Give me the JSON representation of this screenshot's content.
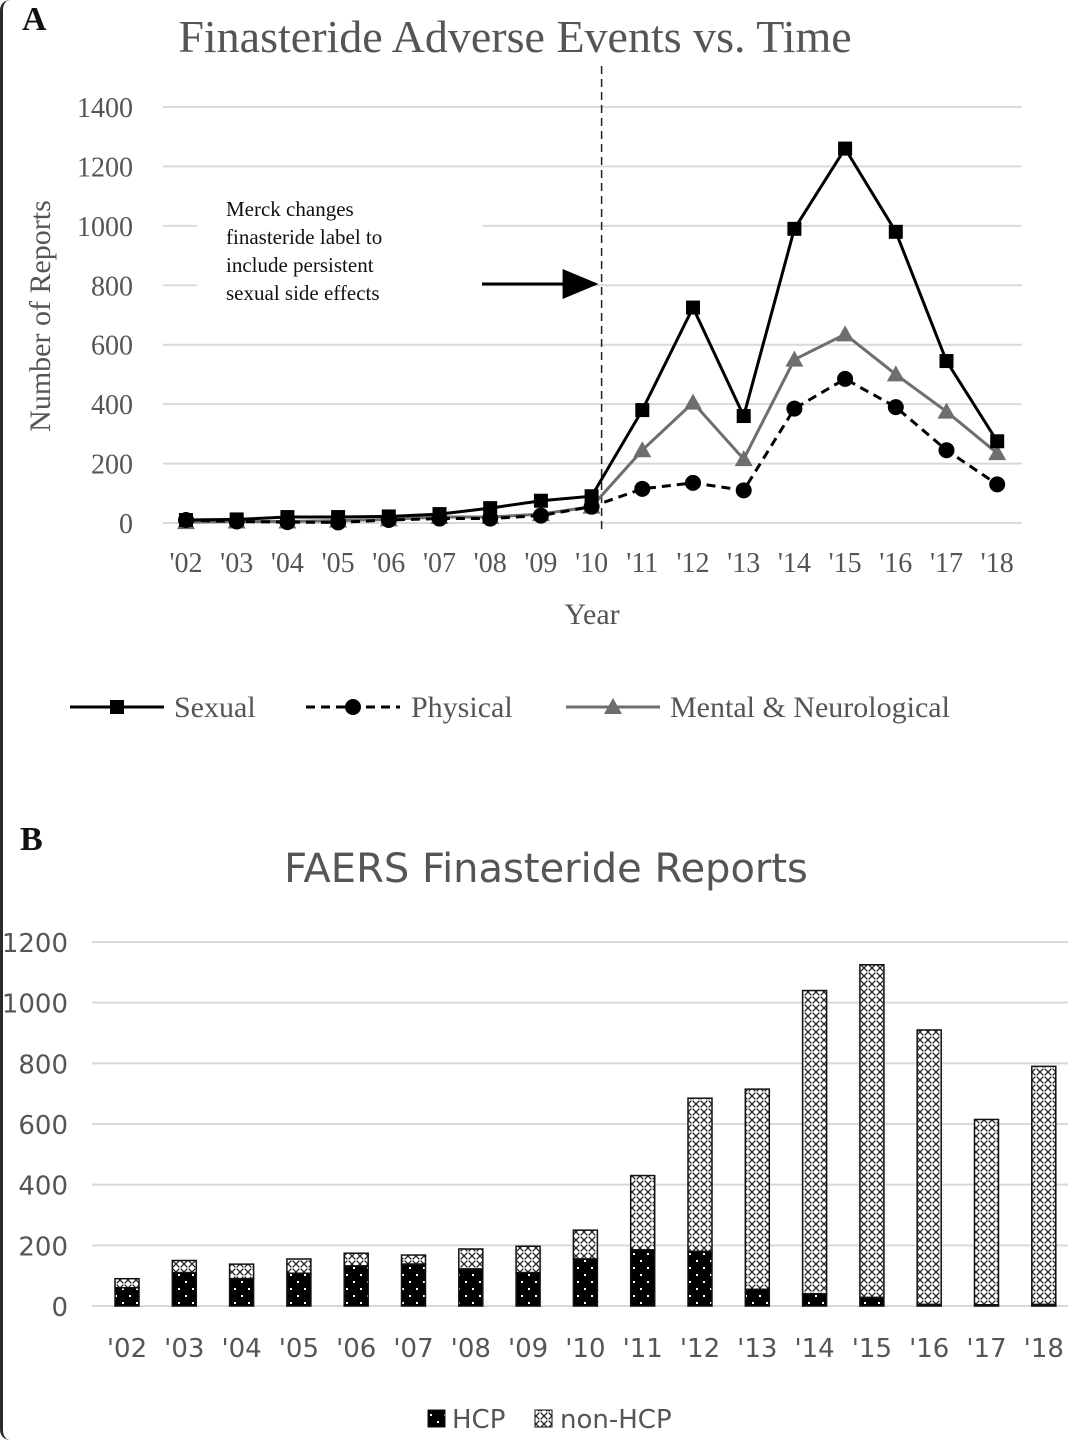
{
  "panels": {
    "a": {
      "letter": "A"
    },
    "b": {
      "letter": "B"
    }
  },
  "chart_data": [
    {
      "id": "A",
      "type": "line",
      "title": "Finasteride Adverse Events vs. Time",
      "xlabel": "Year",
      "ylabel": "Number of Reports",
      "categories": [
        "'02",
        "'03",
        "'04",
        "'05",
        "'06",
        "'07",
        "'08",
        "'09",
        "'10",
        "'11",
        "'12",
        "'13",
        "'14",
        "'15",
        "'16",
        "'17",
        "'18"
      ],
      "ylim": [
        0,
        1400
      ],
      "yticks": [
        0,
        200,
        400,
        600,
        800,
        1000,
        1200,
        1400
      ],
      "ytick_labels": [
        "0",
        "200",
        "400",
        "600",
        "800",
        "1000",
        "1200",
        "1400"
      ],
      "grid": true,
      "legend_position": "bottom",
      "series": [
        {
          "name": "Sexual",
          "marker": "square",
          "line": "solid",
          "color": "#000000",
          "values": [
            10,
            12,
            20,
            20,
            22,
            30,
            50,
            75,
            90,
            380,
            725,
            360,
            990,
            1260,
            980,
            545,
            275
          ]
        },
        {
          "name": "Physical",
          "marker": "circle",
          "line": "dashed",
          "color": "#000000",
          "values": [
            10,
            5,
            3,
            2,
            10,
            15,
            15,
            25,
            55,
            115,
            135,
            110,
            385,
            485,
            390,
            245,
            130
          ]
        },
        {
          "name": "Mental & Neurological",
          "marker": "triangle",
          "line": "solid",
          "color": "#6e6e6e",
          "values": [
            3,
            5,
            5,
            8,
            12,
            20,
            20,
            30,
            55,
            245,
            405,
            215,
            550,
            635,
            500,
            375,
            235
          ]
        }
      ],
      "annotation": {
        "lines": [
          "Merck changes",
          "finasteride label to",
          "include persistent",
          "sexual side effects"
        ],
        "marker_category": "'10",
        "style": "dashed vertical line with arrow"
      }
    },
    {
      "id": "B",
      "type": "bar",
      "stacked": true,
      "title": "FAERS Finasteride Reports",
      "xlabel": "",
      "ylabel": "",
      "categories": [
        "'02",
        "'03",
        "'04",
        "'05",
        "'06",
        "'07",
        "'08",
        "'09",
        "'10",
        "'11",
        "'12",
        "'13",
        "'14",
        "'15",
        "'16",
        "'17",
        "'18"
      ],
      "ylim": [
        0,
        1200
      ],
      "yticks": [
        0,
        200,
        400,
        600,
        800,
        1000,
        1200
      ],
      "ytick_labels": [
        "0",
        "200",
        "400",
        "600",
        "800",
        "1000",
        "1200"
      ],
      "grid": true,
      "legend_position": "bottom",
      "series": [
        {
          "name": "HCP",
          "pattern": "black-dotted",
          "values": [
            60,
            110,
            90,
            108,
            132,
            138,
            122,
            110,
            155,
            185,
            180,
            55,
            40,
            28,
            5,
            4,
            5
          ]
        },
        {
          "name": "non-HCP",
          "pattern": "crosshatch",
          "values": [
            30,
            40,
            48,
            47,
            42,
            30,
            66,
            87,
            95,
            245,
            505,
            660,
            1000,
            1097,
            905,
            611,
            785
          ]
        }
      ]
    }
  ]
}
